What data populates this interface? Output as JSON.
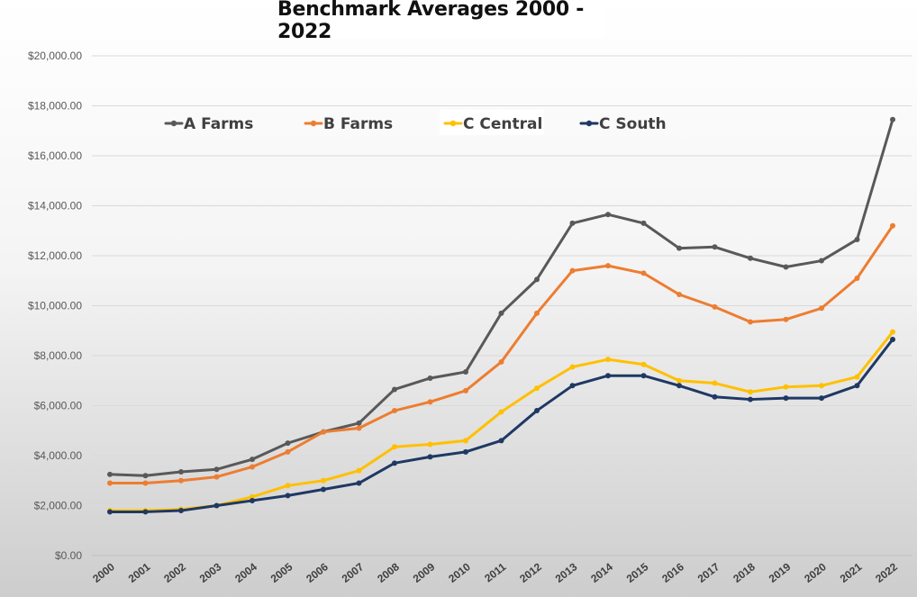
{
  "chart_data": {
    "type": "line",
    "title": "Benchmark Averages 2000 - 2022",
    "xlabel": "",
    "ylabel": "",
    "ylim": [
      0,
      20000
    ],
    "ytick_step": 2000,
    "ytick_labels": [
      "$0.00",
      "$2,000.00",
      "$4,000.00",
      "$6,000.00",
      "$8,000.00",
      "$10,000.00",
      "$12,000.00",
      "$14,000.00",
      "$16,000.00",
      "$18,000.00",
      "$20,000.00"
    ],
    "categories": [
      "2000",
      "2001",
      "2002",
      "2003",
      "2004",
      "2005",
      "2006",
      "2007",
      "2008",
      "2009",
      "2010",
      "2011",
      "2012",
      "2013",
      "2014",
      "2015",
      "2016",
      "2017",
      "2018",
      "2019",
      "2020",
      "2021",
      "2022"
    ],
    "grid": true,
    "legend_position": "top",
    "series": [
      {
        "name": "A Farms",
        "color": "#595959",
        "values": [
          3250,
          3200,
          3350,
          3450,
          3850,
          4500,
          4950,
          5300,
          6650,
          7100,
          7350,
          9700,
          11050,
          13300,
          13650,
          13300,
          12300,
          12350,
          11900,
          11550,
          11800,
          12650,
          17450
        ]
      },
      {
        "name": "B Farms",
        "color": "#ed7d31",
        "values": [
          2900,
          2900,
          3000,
          3150,
          3550,
          4150,
          4950,
          5100,
          5800,
          6150,
          6600,
          7750,
          9700,
          11400,
          11600,
          11300,
          10450,
          9950,
          9350,
          9450,
          9900,
          11100,
          13200
        ]
      },
      {
        "name": "C Central",
        "color": "#ffc000",
        "values": [
          1800,
          1800,
          1850,
          2000,
          2350,
          2800,
          3000,
          3400,
          4350,
          4450,
          4600,
          5750,
          6700,
          7550,
          7850,
          7650,
          7000,
          6900,
          6550,
          6750,
          6800,
          7150,
          8950
        ]
      },
      {
        "name": "C South",
        "color": "#1f3864",
        "values": [
          1750,
          1750,
          1800,
          2000,
          2200,
          2400,
          2650,
          2900,
          3700,
          3950,
          4150,
          4600,
          5800,
          6800,
          7200,
          7200,
          6800,
          6350,
          6250,
          6300,
          6300,
          6800,
          8650
        ]
      }
    ]
  }
}
